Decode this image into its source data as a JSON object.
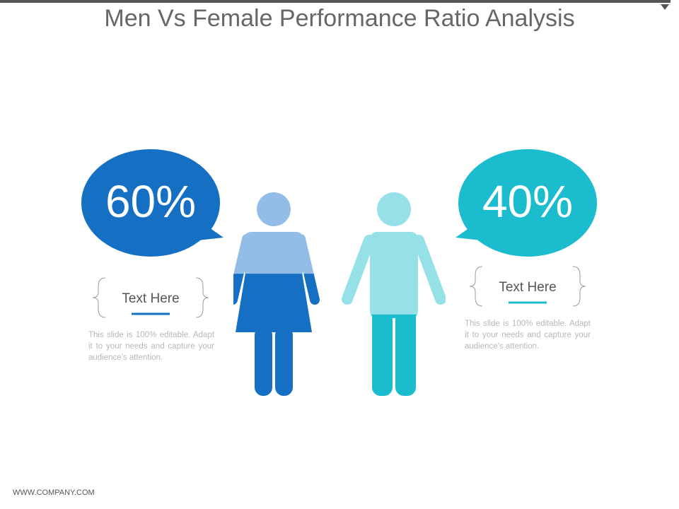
{
  "chart_data": {
    "type": "pictogram",
    "title": "Men Vs Female Performance Ratio Analysis",
    "values": [
      60,
      40
    ],
    "value_labels": [
      "60%",
      "40%"
    ],
    "colors": [
      "#1570c4",
      "#1cbccf"
    ],
    "light_colors": [
      "#93bde6",
      "#96e0e8"
    ],
    "captions": [
      "Text Here",
      "Text Here"
    ],
    "descriptions": [
      "This slide is 100% editable. Adapt it to your needs and capture your audience's attention.",
      "This slide is 100% editable. Adapt it to your needs and capture your audience's attention."
    ],
    "footer": "WWW.COMPANY.COM"
  }
}
